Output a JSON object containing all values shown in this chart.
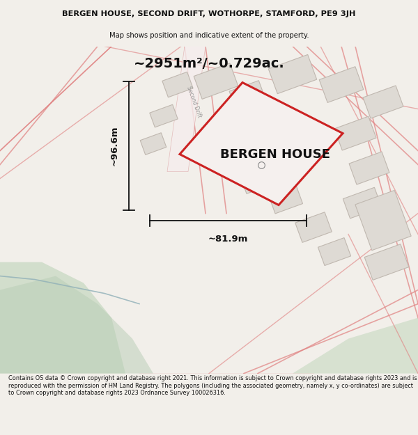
{
  "title_line1": "BERGEN HOUSE, SECOND DRIFT, WOTHORPE, STAMFORD, PE9 3JH",
  "title_line2": "Map shows position and indicative extent of the property.",
  "area_text": "~2951m²/~0.729ac.",
  "property_label": "BERGEN HOUSE",
  "dim_width": "~81.9m",
  "dim_height": "~96.6m",
  "footer_text": "Contains OS data © Crown copyright and database right 2021. This information is subject to Crown copyright and database rights 2023 and is reproduced with the permission of HM Land Registry. The polygons (including the associated geometry, namely x, y co-ordinates) are subject to Crown copyright and database rights 2023 Ordnance Survey 100026316.",
  "bg_color": "#f2efea",
  "map_bg": "#f7f4ef",
  "green_bl_color": "#c5d8c0",
  "green_br_color": "#b8cdb5",
  "road_fill": "#f5eded",
  "road_edge": "#e0b0b0",
  "building_fill": "#dedad4",
  "building_edge": "#c0b8b0",
  "plot_fill": "#f5f0ee",
  "plot_edge": "#cc2222",
  "red_road": "#e08080",
  "dim_color": "#111111",
  "title_color": "#111111",
  "footer_color": "#111111",
  "road_label_color": "#999999",
  "circle_color": "#888888"
}
